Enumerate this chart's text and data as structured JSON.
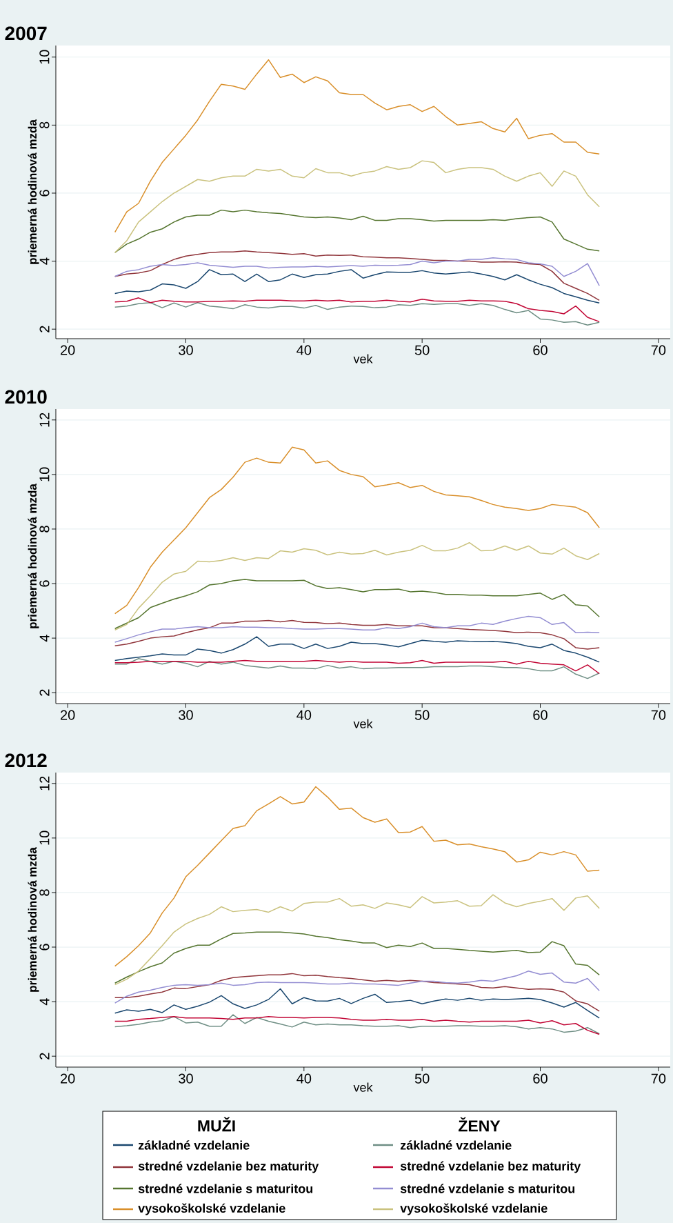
{
  "chart_data": [
    {
      "type": "line",
      "title": "2007",
      "xlabel": "vek",
      "ylabel": "priemerná hodinová mzda",
      "grid": "y",
      "line_style": "solid",
      "x": [
        24,
        25,
        26,
        27,
        28,
        29,
        30,
        31,
        32,
        33,
        34,
        35,
        36,
        37,
        38,
        39,
        40,
        41,
        42,
        43,
        44,
        45,
        46,
        47,
        48,
        49,
        50,
        51,
        52,
        53,
        54,
        55,
        56,
        57,
        58,
        59,
        60,
        61,
        62,
        63,
        64,
        65
      ],
      "xlim": [
        19,
        71
      ],
      "xticks": [
        20,
        30,
        40,
        50,
        60,
        70
      ],
      "ylim": [
        1.72,
        10.34
      ],
      "yticks": [
        2,
        4,
        6,
        8,
        10
      ],
      "series": [
        {
          "color": "#1a476f",
          "values": [
            3.05,
            3.12,
            3.1,
            3.15,
            3.33,
            3.3,
            3.2,
            3.4,
            3.75,
            3.6,
            3.62,
            3.4,
            3.62,
            3.4,
            3.45,
            3.62,
            3.52,
            3.6,
            3.62,
            3.7,
            3.75,
            3.5,
            3.6,
            3.68,
            3.67,
            3.67,
            3.72,
            3.65,
            3.62,
            3.65,
            3.68,
            3.62,
            3.55,
            3.45,
            3.6,
            3.45,
            3.32,
            3.22,
            3.05,
            2.95,
            2.85,
            2.77
          ]
        },
        {
          "color": "#90353b",
          "values": [
            3.55,
            3.62,
            3.65,
            3.72,
            3.9,
            4.05,
            4.15,
            4.2,
            4.25,
            4.27,
            4.27,
            4.3,
            4.27,
            4.25,
            4.23,
            4.2,
            4.22,
            4.15,
            4.18,
            4.17,
            4.18,
            4.13,
            4.12,
            4.1,
            4.1,
            4.08,
            4.05,
            4.02,
            4.02,
            4.0,
            4.0,
            3.97,
            3.97,
            3.98,
            3.97,
            3.92,
            3.9,
            3.7,
            3.35,
            3.2,
            3.05,
            2.85
          ]
        },
        {
          "color": "#55752f",
          "values": [
            4.25,
            4.5,
            4.65,
            4.85,
            4.95,
            5.15,
            5.3,
            5.35,
            5.35,
            5.5,
            5.45,
            5.5,
            5.45,
            5.42,
            5.4,
            5.35,
            5.3,
            5.28,
            5.3,
            5.27,
            5.22,
            5.32,
            5.2,
            5.2,
            5.25,
            5.25,
            5.22,
            5.18,
            5.2,
            5.2,
            5.2,
            5.2,
            5.22,
            5.2,
            5.25,
            5.28,
            5.3,
            5.15,
            4.65,
            4.5,
            4.35,
            4.3
          ]
        },
        {
          "color": "#d98f2a",
          "values": [
            4.85,
            5.45,
            5.7,
            6.35,
            6.9,
            7.3,
            7.7,
            8.15,
            8.7,
            9.2,
            9.15,
            9.05,
            9.5,
            9.92,
            9.4,
            9.5,
            9.25,
            9.42,
            9.3,
            8.95,
            8.9,
            8.9,
            8.65,
            8.45,
            8.55,
            8.6,
            8.4,
            8.55,
            8.25,
            8.0,
            8.05,
            8.1,
            7.9,
            7.8,
            8.2,
            7.6,
            7.7,
            7.75,
            7.5,
            7.5,
            7.2,
            7.15
          ]
        },
        {
          "color": "#6e8e84",
          "values": [
            2.65,
            2.68,
            2.75,
            2.78,
            2.63,
            2.77,
            2.65,
            2.78,
            2.68,
            2.65,
            2.6,
            2.72,
            2.65,
            2.62,
            2.67,
            2.67,
            2.62,
            2.7,
            2.58,
            2.65,
            2.68,
            2.67,
            2.63,
            2.65,
            2.72,
            2.7,
            2.75,
            2.73,
            2.75,
            2.75,
            2.7,
            2.75,
            2.7,
            2.58,
            2.48,
            2.55,
            2.3,
            2.27,
            2.2,
            2.22,
            2.12,
            2.2
          ]
        },
        {
          "color": "#c10534",
          "values": [
            2.8,
            2.82,
            2.92,
            2.78,
            2.85,
            2.82,
            2.8,
            2.8,
            2.82,
            2.82,
            2.83,
            2.82,
            2.85,
            2.85,
            2.85,
            2.83,
            2.83,
            2.85,
            2.83,
            2.85,
            2.8,
            2.82,
            2.82,
            2.85,
            2.82,
            2.8,
            2.88,
            2.83,
            2.82,
            2.82,
            2.85,
            2.83,
            2.83,
            2.82,
            2.75,
            2.6,
            2.55,
            2.52,
            2.45,
            2.68,
            2.35,
            2.22
          ]
        },
        {
          "color": "#938dd2",
          "values": [
            3.55,
            3.7,
            3.75,
            3.85,
            3.9,
            3.87,
            3.9,
            3.95,
            3.88,
            3.85,
            3.82,
            3.85,
            3.85,
            3.8,
            3.82,
            3.83,
            3.83,
            3.85,
            3.83,
            3.85,
            3.87,
            3.85,
            3.88,
            3.87,
            3.88,
            3.9,
            4.0,
            3.95,
            4.0,
            4.0,
            4.05,
            4.05,
            4.1,
            4.07,
            4.05,
            3.95,
            3.92,
            3.85,
            3.55,
            3.7,
            3.93,
            3.28
          ]
        },
        {
          "color": "#cac27e",
          "values": [
            4.25,
            4.6,
            5.15,
            5.45,
            5.75,
            6.0,
            6.2,
            6.4,
            6.35,
            6.45,
            6.5,
            6.5,
            6.7,
            6.65,
            6.7,
            6.5,
            6.45,
            6.72,
            6.6,
            6.6,
            6.5,
            6.6,
            6.65,
            6.78,
            6.7,
            6.75,
            6.95,
            6.9,
            6.6,
            6.7,
            6.75,
            6.75,
            6.7,
            6.5,
            6.35,
            6.5,
            6.6,
            6.2,
            6.65,
            6.5,
            5.95,
            5.6
          ]
        }
      ]
    },
    {
      "type": "line",
      "title": "2010",
      "xlabel": "vek",
      "ylabel": "priemerná hodinová mzda",
      "grid": "y",
      "line_style": "solid",
      "x": [
        24,
        25,
        26,
        27,
        28,
        29,
        30,
        31,
        32,
        33,
        34,
        35,
        36,
        37,
        38,
        39,
        40,
        41,
        42,
        43,
        44,
        45,
        46,
        47,
        48,
        49,
        50,
        51,
        52,
        53,
        54,
        55,
        56,
        57,
        58,
        59,
        60,
        61,
        62,
        63,
        64,
        65
      ],
      "xlim": [
        19,
        71
      ],
      "xticks": [
        20,
        30,
        40,
        50,
        60,
        70
      ],
      "ylim": [
        1.6,
        12.4
      ],
      "yticks": [
        2,
        4,
        6,
        8,
        10,
        12
      ],
      "series": [
        {
          "color": "#1a476f",
          "values": [
            3.18,
            3.25,
            3.3,
            3.35,
            3.42,
            3.38,
            3.38,
            3.6,
            3.55,
            3.45,
            3.58,
            3.78,
            4.05,
            3.7,
            3.78,
            3.78,
            3.62,
            3.78,
            3.62,
            3.7,
            3.85,
            3.8,
            3.8,
            3.75,
            3.68,
            3.8,
            3.92,
            3.88,
            3.85,
            3.9,
            3.88,
            3.87,
            3.88,
            3.85,
            3.8,
            3.7,
            3.65,
            3.78,
            3.55,
            3.45,
            3.3,
            3.12
          ]
        },
        {
          "color": "#90353b",
          "values": [
            3.72,
            3.78,
            3.88,
            4.0,
            4.05,
            4.08,
            4.2,
            4.3,
            4.38,
            4.55,
            4.55,
            4.62,
            4.62,
            4.65,
            4.6,
            4.65,
            4.58,
            4.57,
            4.53,
            4.55,
            4.5,
            4.47,
            4.47,
            4.5,
            4.45,
            4.45,
            4.45,
            4.38,
            4.38,
            4.35,
            4.32,
            4.3,
            4.28,
            4.25,
            4.2,
            4.22,
            4.2,
            4.12,
            3.98,
            3.65,
            3.6,
            3.65
          ]
        },
        {
          "color": "#55752f",
          "values": [
            4.35,
            4.55,
            4.75,
            5.12,
            5.28,
            5.43,
            5.55,
            5.7,
            5.95,
            6.0,
            6.1,
            6.15,
            6.1,
            6.1,
            6.1,
            6.1,
            6.12,
            5.92,
            5.82,
            5.85,
            5.78,
            5.7,
            5.78,
            5.78,
            5.8,
            5.7,
            5.72,
            5.68,
            5.6,
            5.6,
            5.58,
            5.58,
            5.55,
            5.55,
            5.55,
            5.6,
            5.65,
            5.42,
            5.6,
            5.22,
            5.18,
            4.78
          ]
        },
        {
          "color": "#d98f2a",
          "values": [
            4.9,
            5.2,
            5.85,
            6.6,
            7.15,
            7.6,
            8.05,
            8.6,
            9.15,
            9.45,
            9.9,
            10.45,
            10.6,
            10.45,
            10.42,
            11.0,
            10.9,
            10.42,
            10.5,
            10.15,
            10.0,
            9.92,
            9.55,
            9.62,
            9.7,
            9.52,
            9.6,
            9.38,
            9.25,
            9.22,
            9.18,
            9.05,
            8.9,
            8.8,
            8.75,
            8.68,
            8.75,
            8.9,
            8.85,
            8.8,
            8.6,
            8.05
          ]
        },
        {
          "color": "#6e8e84",
          "values": [
            3.05,
            3.05,
            3.25,
            3.15,
            3.05,
            3.15,
            3.08,
            2.95,
            3.15,
            3.05,
            3.12,
            3.0,
            2.95,
            2.9,
            2.98,
            2.9,
            2.9,
            2.88,
            3.0,
            2.9,
            2.95,
            2.88,
            2.9,
            2.9,
            2.92,
            2.92,
            2.92,
            2.95,
            2.95,
            2.95,
            2.98,
            2.98,
            2.95,
            2.92,
            2.92,
            2.88,
            2.8,
            2.8,
            2.95,
            2.68,
            2.52,
            2.72
          ]
        },
        {
          "color": "#c10534",
          "values": [
            3.1,
            3.1,
            3.12,
            3.15,
            3.15,
            3.15,
            3.15,
            3.12,
            3.12,
            3.12,
            3.15,
            3.18,
            3.15,
            3.15,
            3.15,
            3.15,
            3.15,
            3.18,
            3.15,
            3.12,
            3.15,
            3.12,
            3.12,
            3.12,
            3.08,
            3.1,
            3.18,
            3.08,
            3.12,
            3.12,
            3.12,
            3.12,
            3.12,
            3.15,
            3.05,
            3.15,
            3.08,
            3.05,
            3.02,
            2.8,
            3.02,
            2.7
          ]
        },
        {
          "color": "#938dd2",
          "values": [
            3.85,
            3.98,
            4.12,
            4.23,
            4.33,
            4.33,
            4.38,
            4.42,
            4.38,
            4.38,
            4.42,
            4.4,
            4.4,
            4.38,
            4.38,
            4.35,
            4.33,
            4.33,
            4.35,
            4.35,
            4.33,
            4.3,
            4.3,
            4.38,
            4.35,
            4.42,
            4.55,
            4.42,
            4.38,
            4.45,
            4.45,
            4.55,
            4.5,
            4.62,
            4.72,
            4.8,
            4.75,
            4.5,
            4.57,
            4.2,
            4.22,
            4.2
          ]
        },
        {
          "color": "#cac27e",
          "values": [
            4.3,
            4.5,
            5.1,
            5.55,
            6.05,
            6.35,
            6.45,
            6.82,
            6.8,
            6.85,
            6.95,
            6.85,
            6.95,
            6.92,
            7.2,
            7.15,
            7.28,
            7.22,
            7.05,
            7.15,
            7.08,
            7.1,
            7.22,
            7.05,
            7.15,
            7.22,
            7.4,
            7.2,
            7.2,
            7.3,
            7.5,
            7.2,
            7.22,
            7.38,
            7.22,
            7.38,
            7.12,
            7.08,
            7.3,
            7.02,
            6.88,
            7.1
          ]
        }
      ]
    },
    {
      "type": "line",
      "title": "2012",
      "xlabel": "vek",
      "ylabel": "priemerná hodinová mzda",
      "grid": "y",
      "line_style": "solid",
      "legend": "bottom",
      "annotations": [
        "MUŽI",
        "ŽENY"
      ],
      "x": [
        24,
        25,
        26,
        27,
        28,
        29,
        30,
        31,
        32,
        33,
        34,
        35,
        36,
        37,
        38,
        39,
        40,
        41,
        42,
        43,
        44,
        45,
        46,
        47,
        48,
        49,
        50,
        51,
        52,
        53,
        54,
        55,
        56,
        57,
        58,
        59,
        60,
        61,
        62,
        63,
        64,
        65
      ],
      "xlim": [
        19,
        71
      ],
      "xticks": [
        20,
        30,
        40,
        50,
        60,
        70
      ],
      "ylim": [
        1.6,
        12.4
      ],
      "yticks": [
        2,
        4,
        6,
        8,
        10,
        12
      ],
      "series": [
        {
          "name": "základné vzdelanie",
          "color": "#1a476f",
          "values": [
            3.58,
            3.7,
            3.65,
            3.72,
            3.6,
            3.88,
            3.72,
            3.83,
            3.98,
            4.22,
            3.92,
            3.75,
            3.88,
            4.08,
            4.47,
            3.92,
            4.15,
            4.03,
            4.02,
            4.12,
            3.93,
            4.12,
            4.27,
            3.97,
            4.0,
            4.05,
            3.92,
            4.02,
            4.1,
            4.05,
            4.12,
            4.05,
            4.1,
            4.08,
            4.1,
            4.12,
            4.08,
            3.95,
            3.8,
            3.97,
            3.68,
            3.4
          ]
        },
        {
          "name": "stredné vzdelanie bez maturity",
          "color": "#90353b",
          "values": [
            4.15,
            4.15,
            4.2,
            4.28,
            4.35,
            4.5,
            4.48,
            4.55,
            4.62,
            4.78,
            4.88,
            4.92,
            4.95,
            4.98,
            4.98,
            5.03,
            4.95,
            4.97,
            4.92,
            4.88,
            4.85,
            4.8,
            4.75,
            4.78,
            4.75,
            4.78,
            4.75,
            4.7,
            4.68,
            4.65,
            4.62,
            4.52,
            4.5,
            4.55,
            4.5,
            4.45,
            4.47,
            4.45,
            4.35,
            4.03,
            3.92,
            3.65
          ]
        },
        {
          "name": "stredné vzdelanie s maturitou",
          "color": "#55752f",
          "values": [
            4.68,
            4.9,
            5.1,
            5.28,
            5.42,
            5.78,
            5.95,
            6.07,
            6.07,
            6.3,
            6.5,
            6.52,
            6.55,
            6.55,
            6.55,
            6.52,
            6.48,
            6.4,
            6.35,
            6.27,
            6.22,
            6.15,
            6.15,
            5.98,
            6.07,
            6.02,
            6.15,
            5.95,
            5.95,
            5.92,
            5.88,
            5.85,
            5.82,
            5.85,
            5.88,
            5.8,
            5.82,
            6.2,
            6.05,
            5.38,
            5.33,
            4.98
          ]
        },
        {
          "name": "vysokoškolské vzdelanie",
          "color": "#d98f2a",
          "values": [
            5.3,
            5.65,
            6.05,
            6.52,
            7.25,
            7.8,
            8.58,
            9.0,
            9.45,
            9.9,
            10.35,
            10.45,
            11.0,
            11.25,
            11.52,
            11.25,
            11.32,
            11.88,
            11.5,
            11.05,
            11.1,
            10.75,
            10.58,
            10.7,
            10.2,
            10.22,
            10.42,
            9.88,
            9.92,
            9.75,
            9.78,
            9.68,
            9.6,
            9.5,
            9.12,
            9.2,
            9.48,
            9.38,
            9.5,
            9.38,
            8.78,
            8.82
          ]
        },
        {
          "name": "základné vzdelanie",
          "color": "#6e8e84",
          "values": [
            3.08,
            3.12,
            3.17,
            3.25,
            3.3,
            3.45,
            3.22,
            3.25,
            3.1,
            3.1,
            3.52,
            3.2,
            3.42,
            3.28,
            3.18,
            3.07,
            3.25,
            3.15,
            3.18,
            3.15,
            3.15,
            3.12,
            3.1,
            3.1,
            3.12,
            3.05,
            3.1,
            3.1,
            3.1,
            3.12,
            3.12,
            3.1,
            3.1,
            3.12,
            3.08,
            3.0,
            3.05,
            3.0,
            2.88,
            2.92,
            3.05,
            2.82
          ]
        },
        {
          "name": "stredné vzdelanie bez maturity",
          "color": "#c10534",
          "values": [
            3.28,
            3.28,
            3.35,
            3.38,
            3.42,
            3.45,
            3.4,
            3.4,
            3.4,
            3.38,
            3.35,
            3.4,
            3.4,
            3.45,
            3.42,
            3.42,
            3.4,
            3.42,
            3.42,
            3.4,
            3.35,
            3.32,
            3.32,
            3.35,
            3.32,
            3.32,
            3.35,
            3.28,
            3.32,
            3.28,
            3.25,
            3.28,
            3.28,
            3.28,
            3.28,
            3.32,
            3.22,
            3.3,
            3.15,
            3.2,
            2.95,
            2.8
          ]
        },
        {
          "name": "stredné vzdelanie s maturitou",
          "color": "#938dd2",
          "values": [
            3.95,
            4.2,
            4.35,
            4.42,
            4.52,
            4.6,
            4.62,
            4.6,
            4.62,
            4.68,
            4.6,
            4.62,
            4.7,
            4.72,
            4.7,
            4.7,
            4.7,
            4.68,
            4.65,
            4.65,
            4.68,
            4.65,
            4.65,
            4.62,
            4.6,
            4.68,
            4.75,
            4.75,
            4.7,
            4.68,
            4.72,
            4.78,
            4.75,
            4.85,
            4.95,
            5.12,
            5.0,
            5.05,
            4.72,
            4.68,
            4.85,
            4.4
          ]
        },
        {
          "name": "vysokoškolské vzdelanie",
          "color": "#cac27e",
          "values": [
            4.62,
            4.82,
            5.12,
            5.58,
            6.05,
            6.55,
            6.85,
            7.05,
            7.2,
            7.48,
            7.3,
            7.35,
            7.38,
            7.28,
            7.48,
            7.32,
            7.6,
            7.65,
            7.65,
            7.78,
            7.5,
            7.55,
            7.42,
            7.62,
            7.55,
            7.45,
            7.85,
            7.62,
            7.65,
            7.7,
            7.5,
            7.52,
            7.92,
            7.62,
            7.48,
            7.6,
            7.68,
            7.78,
            7.35,
            7.8,
            7.88,
            7.42
          ]
        }
      ]
    }
  ]
}
